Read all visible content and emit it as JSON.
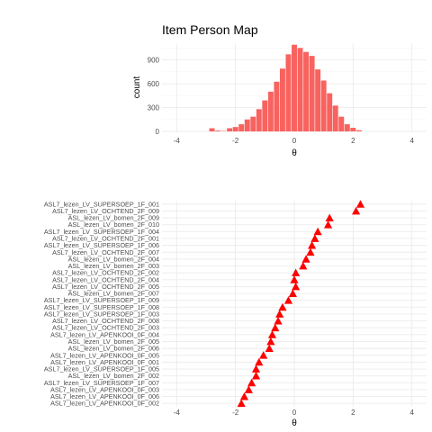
{
  "chart_data": [
    {
      "type": "bar",
      "title": "Item Person Map",
      "xlabel": "θ",
      "ylabel": "count",
      "xlim": [
        -4.5,
        4.5
      ],
      "ylim": [
        0,
        1110
      ],
      "x_ticks": [
        "-4",
        "-2",
        "0",
        "2",
        "4"
      ],
      "y_ticks": [
        "0",
        "300",
        "600",
        "900"
      ],
      "bin_width": 0.2,
      "bin_centers": [
        -2.8,
        -2.6,
        -2.4,
        -2.2,
        -2.0,
        -1.8,
        -1.6,
        -1.4,
        -1.2,
        -1.0,
        -0.8,
        -0.6,
        -0.4,
        -0.2,
        0.0,
        0.2,
        0.4,
        0.6,
        0.8,
        1.0,
        1.2,
        1.4,
        1.6,
        1.8,
        2.0,
        2.2
      ],
      "values": [
        40,
        10,
        5,
        40,
        55,
        90,
        150,
        185,
        280,
        390,
        500,
        625,
        790,
        970,
        1090,
        1050,
        1000,
        950,
        780,
        640,
        480,
        325,
        185,
        90,
        45,
        15
      ],
      "bar_color": "#f8625f",
      "grid": true
    },
    {
      "type": "scatter",
      "xlabel": "θ",
      "ylabel": "",
      "xlim": [
        -4.5,
        4.5
      ],
      "x_ticks": [
        "-4",
        "-2",
        "0",
        "2",
        "4"
      ],
      "marker": "triangle",
      "marker_color": "#ff0000",
      "grid": true,
      "items": [
        "ASL7_lezen_LV_SUPERSOEP_1F_001",
        "ASL7_lezen_LV_OCHTEND_2F_009",
        "ASL_lezen_LV_bomen_2F_009",
        "ASL_lezen_LV_bomen_2F_010",
        "ASL7_lezen_LV_SUPERSOEP_1F_004",
        "ASL7_lezen_LV_OCHTEND_2F_001",
        "ASL7_lezen_LV_SUPERSOEP_1F_006",
        "ASL7_lezen_LV_OCHTEND_2F_007",
        "ASL_lezen_LV_bomen_2F_004",
        "ASL_lezen_LV_bomen_2F_003",
        "ASL7_lezen_LV_OCHTEND_2F_002",
        "ASL7_lezen_LV_OCHTEND_2F_004",
        "ASL7_lezen_LV_OCHTEND_2F_005",
        "ASL_lezen_LV_bomen_2F_007",
        "ASL7_lezen_LV_SUPERSOEP_1F_009",
        "ASL7_lezen_LV_SUPERSOEP_1F_008",
        "ASL7_lezen_LV_SUPERSOEP_1F_003",
        "ASL7_lezen_LV_OCHTEND_2F_008",
        "ASL7_lezen_LV_OCHTEND_2F_003",
        "ASL7_lezen_LV_APENKOOI_0F_004",
        "ASL_lezen_LV_bomen_2F_005",
        "ASL_lezen_LV_bomen_2F_006",
        "ASL7_lezen_LV_APENKOOI_0F_005",
        "ASL7_lezen_LV_APENKOOI_0F_001",
        "ASL7_lezen_LV_SUPERSOEP_1F_005",
        "ASL_lezen_LV_bomen_2F_002",
        "ASL7_lezen_LV_SUPERSOEP_1F_007",
        "ASL7_lezen_LV_APENKOOI_0F_003",
        "ASL7_lezen_LV_APENKOOI_0F_006",
        "ASL7_lezen_LV_APENKOOI_0F_002"
      ],
      "locations": [
        2.25,
        2.1,
        1.2,
        1.15,
        0.8,
        0.7,
        0.6,
        0.55,
        0.4,
        0.3,
        0.05,
        0.0,
        0.05,
        -0.05,
        -0.2,
        -0.4,
        -0.5,
        -0.55,
        -0.65,
        -0.75,
        -0.8,
        -0.85,
        -1.05,
        -1.2,
        -1.3,
        -1.3,
        -1.45,
        -1.55,
        -1.7,
        -1.8
      ]
    }
  ]
}
